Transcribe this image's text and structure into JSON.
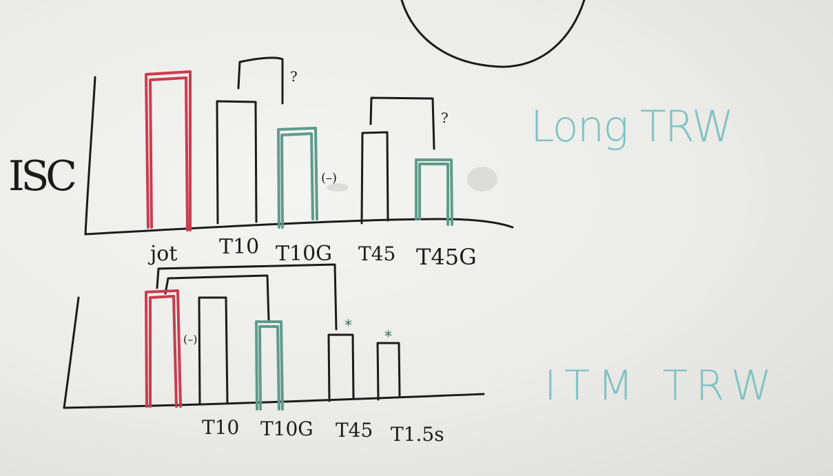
{
  "colors": {
    "board": "#ebebe8",
    "black_marker": "#1b1b1b",
    "red_marker": "#cc3b4e",
    "teal_marker": "#5f9a8b",
    "light_teal_text": "#7fc2c3"
  },
  "top_chart": {
    "y_axis_label": "ISC",
    "side_label": "Long TRW",
    "bars": [
      {
        "label": "jot",
        "height": 0.95,
        "color": "red"
      },
      {
        "label": "T10",
        "height": 0.78,
        "color": "black"
      },
      {
        "label": "T10G",
        "height": 0.6,
        "color": "teal"
      },
      {
        "label": "T45",
        "height": 0.55,
        "color": "black"
      },
      {
        "label": "T45G",
        "height": 0.38,
        "color": "teal"
      }
    ],
    "annotations": [
      "?",
      "?",
      "(–)"
    ]
  },
  "bottom_chart": {
    "side_label": "ITM TRW",
    "bars": [
      {
        "label": "",
        "height": 0.97,
        "color": "red"
      },
      {
        "label": "T10",
        "height": 0.95,
        "color": "black"
      },
      {
        "label": "T10G",
        "height": 0.75,
        "color": "teal"
      },
      {
        "label": "T45",
        "height": 0.55,
        "color": "black"
      },
      {
        "label": "T1.5s",
        "height": 0.46,
        "color": "black"
      }
    ],
    "annotations": [
      "(–)",
      "*",
      "*"
    ]
  }
}
